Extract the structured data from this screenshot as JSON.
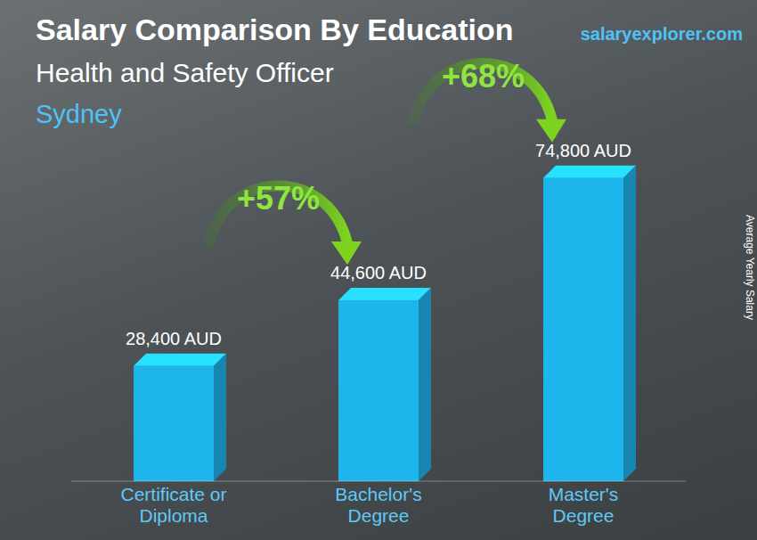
{
  "chart_data": {
    "type": "bar",
    "title": "Salary Comparison By Education",
    "subtitle": "Health and Safety Officer",
    "location": "Sydney",
    "source": "salaryexplorer.com",
    "ylabel": "Average Yearly Salary",
    "categories": [
      "Certificate or Diploma",
      "Bachelor's Degree",
      "Master's Degree"
    ],
    "values": [
      28400,
      44600,
      74800
    ],
    "value_labels": [
      "28,400 AUD",
      "44,600 AUD",
      "74,800 AUD"
    ],
    "color": "#1eb4ec",
    "ylim": [
      0,
      80000
    ],
    "data_labels": true,
    "tick_labels": "x",
    "grid": false,
    "annotations": [
      "+57%",
      "+68%"
    ]
  }
}
